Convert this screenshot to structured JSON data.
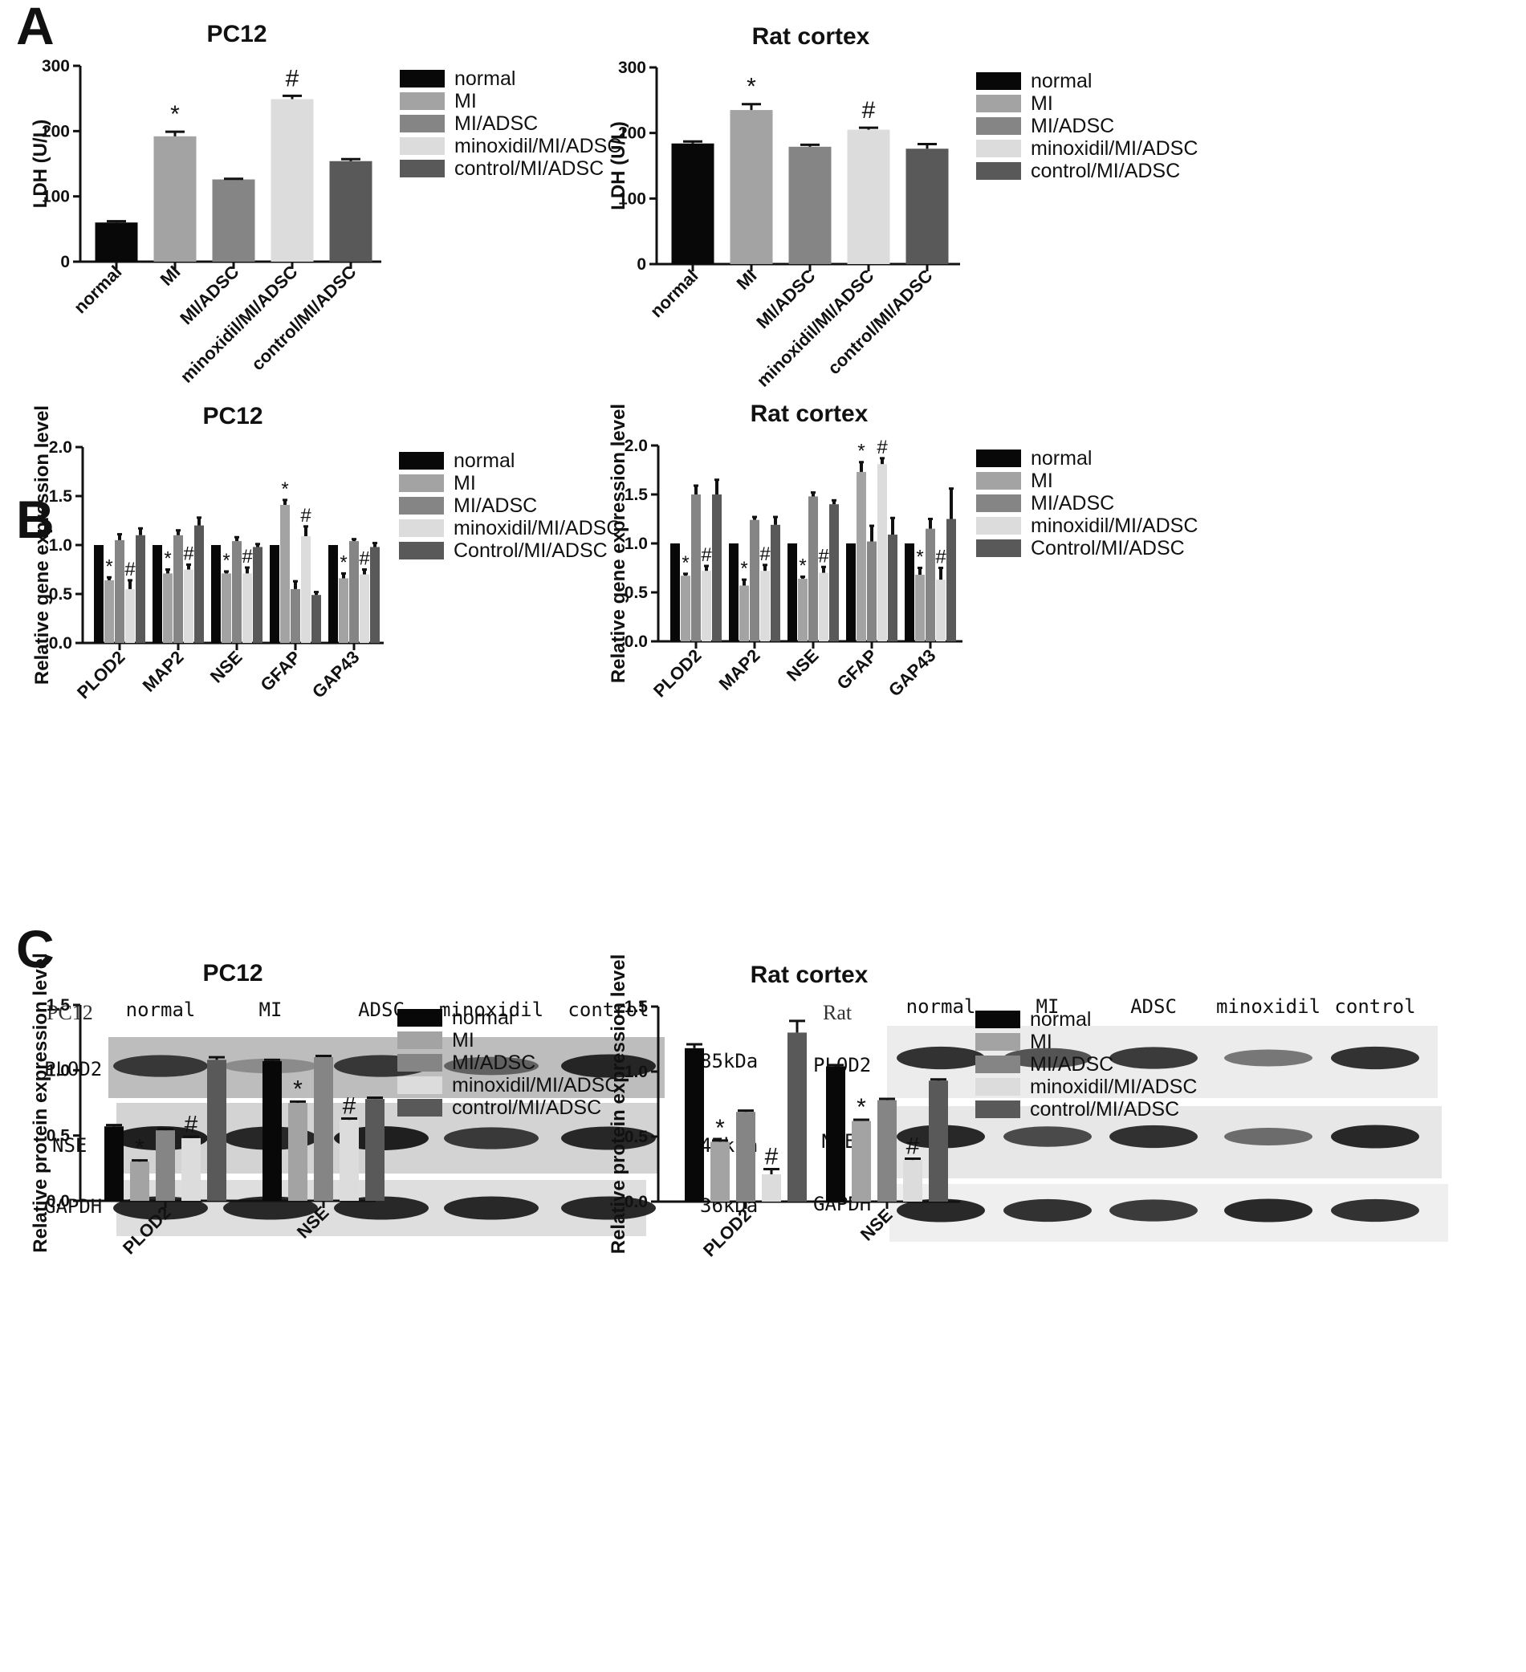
{
  "panels": {
    "a": "A",
    "b": "B",
    "c": "C"
  },
  "palette": [
    "#080808",
    "#a3a3a3",
    "#858585",
    "#dcdcdc",
    "#595959"
  ],
  "chart_data": [
    {
      "id": "a_pc12",
      "type": "bar",
      "title": "PC12",
      "ylabel": "LDH (U/L)",
      "ylim": [
        0,
        300
      ],
      "yticks": [
        "0",
        "100",
        "200",
        "300"
      ],
      "grid": false,
      "categories": [
        "normal",
        "MI",
        "MI/ADSC",
        "minoxidil/MI/ADSC",
        "control/MI/ADSC"
      ],
      "values": [
        60,
        192,
        126,
        249,
        154
      ],
      "errors": [
        2,
        7,
        1,
        5,
        3
      ],
      "marks": [
        "",
        "*",
        "",
        "#",
        ""
      ],
      "legend": [
        "normal",
        "MI",
        "MI/ADSC",
        "minoxidil/MI/ADSC",
        "control/MI/ADSC"
      ],
      "legend_position": "right"
    },
    {
      "id": "a_rat",
      "type": "bar",
      "title": "Rat cortex",
      "ylabel": "LDH (U/L)",
      "ylim": [
        0,
        300
      ],
      "yticks": [
        "0",
        "100",
        "200",
        "300"
      ],
      "grid": false,
      "categories": [
        "normal",
        "MI",
        "MI/ADSC",
        "minoxidil/MI/ADSC",
        "control/MI/ADSC"
      ],
      "values": [
        184,
        235,
        179,
        205,
        176
      ],
      "errors": [
        3,
        9,
        3,
        3,
        7
      ],
      "marks": [
        "",
        "*",
        "",
        "#",
        ""
      ],
      "legend": [
        "normal",
        "MI",
        "MI/ADSC",
        "minoxidil/MI/ADSC",
        "control/MI/ADSC"
      ],
      "legend_position": "right"
    },
    {
      "id": "b_pc12",
      "type": "bar",
      "title": "PC12",
      "ylabel": "Relative gene expression level",
      "ylim": [
        0,
        2.0
      ],
      "yticks": [
        "0.0",
        "0.5",
        "1.0",
        "1.5",
        "2.0"
      ],
      "grid": false,
      "categories": [
        "PLOD2",
        "MAP2",
        "NSE",
        "GFAP",
        "GAP43"
      ],
      "series": [
        {
          "name": "normal",
          "values": [
            1.0,
            1.0,
            1.0,
            1.0,
            1.0
          ],
          "errors": [
            0,
            0,
            0,
            0,
            0
          ],
          "marks": [
            "",
            "",
            "",
            "",
            ""
          ]
        },
        {
          "name": "MI",
          "values": [
            0.64,
            0.71,
            0.71,
            1.41,
            0.66
          ],
          "errors": [
            0.03,
            0.04,
            0.02,
            0.05,
            0.05
          ],
          "marks": [
            "*",
            "*",
            "*",
            "*",
            "*"
          ]
        },
        {
          "name": "MI/ADSC",
          "values": [
            1.05,
            1.1,
            1.04,
            0.55,
            1.04
          ],
          "errors": [
            0.06,
            0.05,
            0.04,
            0.08,
            0.02
          ],
          "marks": [
            "",
            "",
            "",
            "",
            ""
          ]
        },
        {
          "name": "minoxidil/MI/ADSC",
          "values": [
            0.55,
            0.75,
            0.71,
            1.09,
            0.7
          ],
          "errors": [
            0.09,
            0.05,
            0.06,
            0.1,
            0.05
          ],
          "marks": [
            "#",
            "#",
            "#",
            "#",
            "#"
          ]
        },
        {
          "name": "Control/MI/ADSC",
          "values": [
            1.1,
            1.2,
            0.98,
            0.49,
            0.98
          ],
          "errors": [
            0.07,
            0.08,
            0.03,
            0.03,
            0.04
          ],
          "marks": [
            "",
            "",
            "",
            "",
            ""
          ]
        }
      ],
      "legend": [
        "normal",
        "MI",
        "MI/ADSC",
        "minoxidil/MI/ADSC",
        "Control/MI/ADSC"
      ],
      "legend_position": "right"
    },
    {
      "id": "b_rat",
      "type": "bar",
      "title": "Rat cortex",
      "ylabel": "Relative gene expression level",
      "ylim": [
        0,
        2.0
      ],
      "yticks": [
        "0.0",
        "0.5",
        "1.0",
        "1.5",
        "2.0"
      ],
      "grid": false,
      "categories": [
        "PLOD2",
        "MAP2",
        "NSE",
        "GFAP",
        "GAP43"
      ],
      "series": [
        {
          "name": "normal",
          "values": [
            1.0,
            1.0,
            1.0,
            1.0,
            1.0
          ],
          "errors": [
            0,
            0,
            0,
            0,
            0
          ],
          "marks": [
            "",
            "",
            "",
            "",
            ""
          ]
        },
        {
          "name": "MI",
          "values": [
            0.67,
            0.57,
            0.64,
            1.73,
            0.68
          ],
          "errors": [
            0.02,
            0.06,
            0.02,
            0.1,
            0.07
          ],
          "marks": [
            "*",
            "*",
            "*",
            "*",
            "*"
          ]
        },
        {
          "name": "MI/ADSC",
          "values": [
            1.5,
            1.24,
            1.48,
            1.02,
            1.15
          ],
          "errors": [
            0.09,
            0.03,
            0.04,
            0.16,
            0.1
          ],
          "marks": [
            "",
            "",
            "",
            "",
            ""
          ]
        },
        {
          "name": "minoxidil/MI/ADSC",
          "values": [
            0.72,
            0.72,
            0.7,
            1.81,
            0.63
          ],
          "errors": [
            0.05,
            0.06,
            0.06,
            0.06,
            0.12
          ],
          "marks": [
            "#",
            "#",
            "#",
            "#",
            "#"
          ]
        },
        {
          "name": "Control/MI/ADSC",
          "values": [
            1.5,
            1.19,
            1.4,
            1.09,
            1.25
          ],
          "errors": [
            0.15,
            0.08,
            0.04,
            0.17,
            0.31
          ],
          "marks": [
            "",
            "",
            "",
            "",
            ""
          ]
        }
      ],
      "legend": [
        "normal",
        "MI",
        "MI/ADSC",
        "minoxidil/MI/ADSC",
        "Control/MI/ADSC"
      ],
      "legend_position": "right"
    },
    {
      "id": "c_pc12",
      "type": "bar",
      "title": "PC12",
      "ylabel": "Relative protein expression level",
      "ylim": [
        0,
        1.5
      ],
      "yticks": [
        "0.0",
        "0.5",
        "1.0",
        "1.5"
      ],
      "grid": false,
      "categories": [
        "PLOD2",
        "NSE"
      ],
      "series": [
        {
          "name": "normal",
          "values": [
            0.57,
            1.07
          ],
          "errors": [
            0.01,
            0.01
          ],
          "marks": [
            "",
            ""
          ]
        },
        {
          "name": "MI",
          "values": [
            0.3,
            0.75
          ],
          "errors": [
            0.01,
            0.01
          ],
          "marks": [
            "*",
            "*"
          ]
        },
        {
          "name": "MI/ADSC",
          "values": [
            0.54,
            1.1
          ],
          "errors": [
            0.01,
            0.01
          ],
          "marks": [
            "",
            ""
          ]
        },
        {
          "name": "minoxidil/MI/ADSC",
          "values": [
            0.48,
            0.62
          ],
          "errors": [
            0.01,
            0.01
          ],
          "marks": [
            "#",
            "#"
          ]
        },
        {
          "name": "control/MI/ADSC",
          "values": [
            1.08,
            0.78
          ],
          "errors": [
            0.02,
            0.01
          ],
          "marks": [
            "",
            ""
          ]
        }
      ],
      "legend": [
        "normal",
        "MI",
        "MI/ADSC",
        "minoxidil/MI/ADSC",
        "control/MI/ADSC"
      ],
      "legend_position": "right"
    },
    {
      "id": "c_rat",
      "type": "bar",
      "title": "Rat cortex",
      "ylabel": "Relative protein expression level",
      "ylim": [
        0,
        1.5
      ],
      "yticks": [
        "0.0",
        "0.5",
        "1.0",
        "1.5"
      ],
      "grid": false,
      "categories": [
        "PLOD2",
        "NSE"
      ],
      "series": [
        {
          "name": "normal",
          "values": [
            1.18,
            1.04
          ],
          "errors": [
            0.03,
            0.01
          ],
          "marks": [
            "",
            ""
          ]
        },
        {
          "name": "MI",
          "values": [
            0.46,
            0.62
          ],
          "errors": [
            0.01,
            0.01
          ],
          "marks": [
            "*",
            "*"
          ]
        },
        {
          "name": "MI/ADSC",
          "values": [
            0.69,
            0.78
          ],
          "errors": [
            0.01,
            0.01
          ],
          "marks": [
            "",
            ""
          ]
        },
        {
          "name": "minoxidil/MI/ADSC",
          "values": [
            0.21,
            0.32
          ],
          "errors": [
            0.04,
            0.01
          ],
          "marks": [
            "#",
            "#"
          ]
        },
        {
          "name": "control/MI/ADSC",
          "values": [
            1.3,
            0.93
          ],
          "errors": [
            0.09,
            0.01
          ],
          "marks": [
            "",
            ""
          ]
        }
      ],
      "legend": [
        "normal",
        "MI",
        "MI/ADSC",
        "minoxidil/MI/ADSC",
        "control/MI/ADSC"
      ],
      "legend_position": "right"
    }
  ],
  "blots": {
    "pc12": {
      "sample": "PC12",
      "lanes": [
        "normal",
        "MI",
        "ADSC",
        "minoxidil",
        "control"
      ],
      "rows": [
        "PLOD2",
        "NSE",
        "GAPDH"
      ],
      "sizes": [
        "85kDa",
        "47kDa",
        "36kDa"
      ],
      "intensity": {
        "PLOD2": [
          0.85,
          0.35,
          0.85,
          0.6,
          0.95
        ],
        "NSE": [
          1.0,
          0.95,
          1.0,
          0.85,
          0.95
        ],
        "GAPDH": [
          0.95,
          0.95,
          0.95,
          0.95,
          0.95
        ]
      }
    },
    "rat": {
      "sample": "Rat",
      "lanes": [
        "normal",
        "MI",
        "ADSC",
        "minoxidil",
        "control"
      ],
      "rows": [
        "PLOD2",
        "NSE",
        "GAPDH"
      ],
      "intensity": {
        "PLOD2": [
          0.9,
          0.7,
          0.85,
          0.5,
          0.9
        ],
        "NSE": [
          0.95,
          0.75,
          0.9,
          0.55,
          0.95
        ],
        "GAPDH": [
          0.95,
          0.9,
          0.85,
          0.95,
          0.9
        ]
      }
    }
  }
}
